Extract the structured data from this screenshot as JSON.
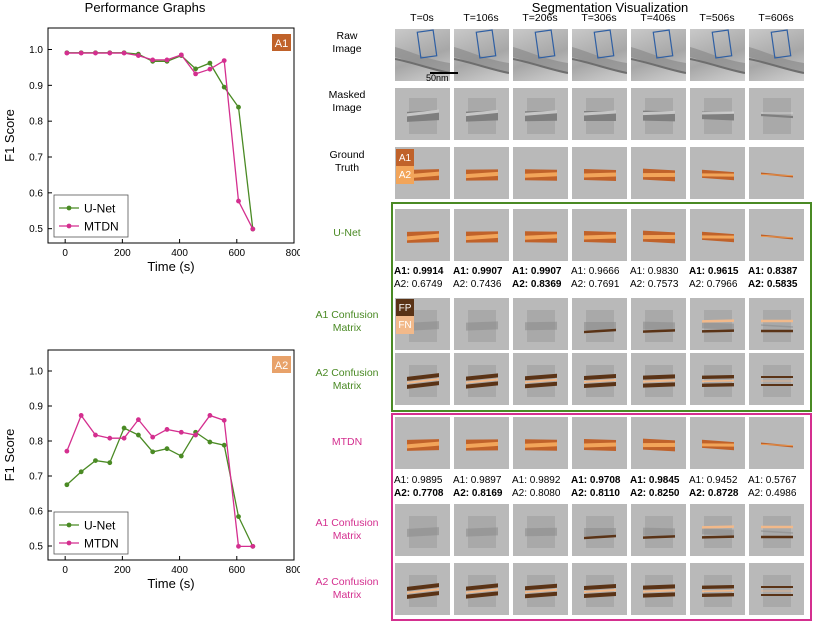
{
  "left_title": "Performance Graphs",
  "right_title": "Segmentation Visualization",
  "chart_data": [
    {
      "type": "line",
      "badge": "A1",
      "badge_color": "#c0622a",
      "xlabel": "Time (s)",
      "ylabel": "F1 Score",
      "xlim": [
        -60,
        800
      ],
      "ylim": [
        0.46,
        1.06
      ],
      "xticks": [
        "0",
        "200",
        "400",
        "600",
        "800"
      ],
      "yticks": [
        "0.5",
        "0.6",
        "0.7",
        "0.8",
        "0.9",
        "1.0"
      ],
      "x": [
        6,
        56,
        106,
        156,
        206,
        256,
        306,
        356,
        406,
        456,
        506,
        556,
        606,
        656
      ],
      "series": [
        {
          "name": "U-Net",
          "color": "#4a8a24",
          "values": [
            0.991,
            0.991,
            0.991,
            0.991,
            0.991,
            0.987,
            0.967,
            0.967,
            0.983,
            0.946,
            0.962,
            0.895,
            0.839,
            0.499
          ]
        },
        {
          "name": "MTDN",
          "color": "#d42f8f",
          "values": [
            0.99,
            0.99,
            0.99,
            0.99,
            0.99,
            0.983,
            0.971,
            0.971,
            0.985,
            0.932,
            0.945,
            0.969,
            0.577,
            0.499
          ]
        }
      ],
      "legend": "bottom-left"
    },
    {
      "type": "line",
      "badge": "A2",
      "badge_color": "#e8a26a",
      "xlabel": "Time (s)",
      "ylabel": "F1 Score",
      "xlim": [
        -60,
        800
      ],
      "ylim": [
        0.46,
        1.06
      ],
      "xticks": [
        "0",
        "200",
        "400",
        "600",
        "800"
      ],
      "yticks": [
        "0.5",
        "0.6",
        "0.7",
        "0.8",
        "0.9",
        "1.0"
      ],
      "x": [
        6,
        56,
        106,
        156,
        206,
        256,
        306,
        356,
        406,
        456,
        506,
        556,
        606,
        656
      ],
      "series": [
        {
          "name": "U-Net",
          "color": "#4a8a24",
          "values": [
            0.675,
            0.712,
            0.744,
            0.738,
            0.837,
            0.817,
            0.769,
            0.778,
            0.757,
            0.825,
            0.797,
            0.788,
            0.584,
            0.499
          ]
        },
        {
          "name": "MTDN",
          "color": "#d42f8f",
          "values": [
            0.771,
            0.873,
            0.817,
            0.808,
            0.808,
            0.861,
            0.811,
            0.833,
            0.825,
            0.817,
            0.873,
            0.859,
            0.499,
            0.499
          ]
        }
      ],
      "legend": "bottom-left"
    }
  ],
  "viz": {
    "times": [
      "T=0s",
      "T=106s",
      "T=206s",
      "T=306s",
      "T=406s",
      "T=506s",
      "T=606s"
    ],
    "row_labels": {
      "raw": "Raw\nImage",
      "masked": "Masked\nImage",
      "gt": "Ground\nTruth",
      "unet": "U-Net",
      "unet_a1cm": "A1 Confusion\nMatrix",
      "unet_a2cm": "A2 Confusion\nMatrix",
      "mtdn": "MTDN",
      "mtdn_a1cm": "A1 Confusion\nMatrix",
      "mtdn_a2cm": "A2 Confusion\nMatrix"
    },
    "scale_bar": "50nm",
    "legend": {
      "a1": "A1",
      "a2": "A2",
      "fp": "FP",
      "fn": "FN"
    },
    "colors": {
      "a1": "#c0622a",
      "a2": "#f2a55a",
      "fp": "#5a3316",
      "fn": "#f2b98a",
      "unet_box": "#4a8a24",
      "mtdn_box": "#d42f8f"
    },
    "unet_scores": [
      {
        "a1_label": "A1:",
        "a1": "0.9914",
        "a1_bold": true,
        "a2_label": "A2:",
        "a2": "0.6749",
        "a2_bold": false
      },
      {
        "a1_label": "A1:",
        "a1": "0.9907",
        "a1_bold": true,
        "a2_label": "A2:",
        "a2": "0.7436",
        "a2_bold": false
      },
      {
        "a1_label": "A1:",
        "a1": "0.9907",
        "a1_bold": true,
        "a2_label": "A2:",
        "a2": "0.8369",
        "a2_bold": true
      },
      {
        "a1_label": "A1:",
        "a1": "0.9666",
        "a1_bold": false,
        "a2_label": "A2:",
        "a2": "0.7691",
        "a2_bold": false
      },
      {
        "a1_label": "A1:",
        "a1": "0.9830",
        "a1_bold": false,
        "a2_label": "A2:",
        "a2": "0.7573",
        "a2_bold": false
      },
      {
        "a1_label": "A1:",
        "a1": "0.9615",
        "a1_bold": true,
        "a2_label": "A2:",
        "a2": "0.7966",
        "a2_bold": false
      },
      {
        "a1_label": "A1:",
        "a1": "0.8387",
        "a1_bold": true,
        "a2_label": "A2:",
        "a2": "0.5835",
        "a2_bold": true
      }
    ],
    "mtdn_scores": [
      {
        "a1_label": "A1:",
        "a1": "0.9895",
        "a1_bold": false,
        "a2_label": "A2:",
        "a2": "0.7708",
        "a2_bold": true
      },
      {
        "a1_label": "A1:",
        "a1": "0.9897",
        "a1_bold": false,
        "a2_label": "A2:",
        "a2": "0.8169",
        "a2_bold": true
      },
      {
        "a1_label": "A1:",
        "a1": "0.9892",
        "a1_bold": false,
        "a2_label": "A2:",
        "a2": "0.8080",
        "a2_bold": false
      },
      {
        "a1_label": "A1:",
        "a1": "0.9708",
        "a1_bold": true,
        "a2_label": "A2:",
        "a2": "0.8110",
        "a2_bold": true
      },
      {
        "a1_label": "A1:",
        "a1": "0.9845",
        "a1_bold": true,
        "a2_label": "A2:",
        "a2": "0.8250",
        "a2_bold": true
      },
      {
        "a1_label": "A1:",
        "a1": "0.9452",
        "a1_bold": false,
        "a2_label": "A2:",
        "a2": "0.8728",
        "a2_bold": true
      },
      {
        "a1_label": "A1:",
        "a1": "0.5767",
        "a1_bold": false,
        "a2_label": "A2:",
        "a2": "0.4986",
        "a2_bold": false
      }
    ]
  }
}
